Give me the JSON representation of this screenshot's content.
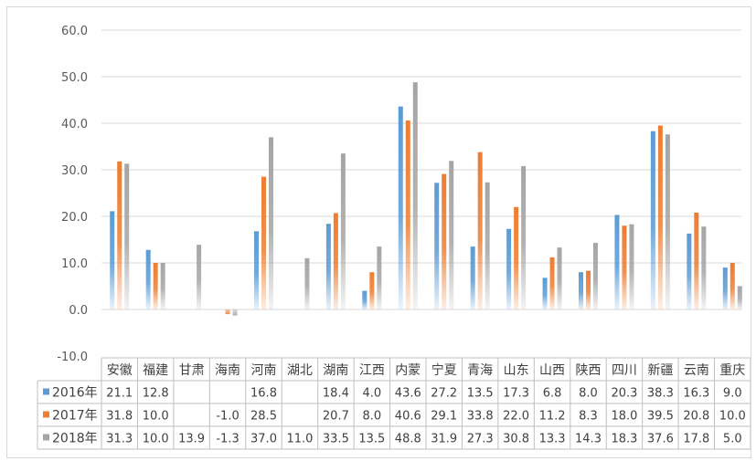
{
  "chart_data": {
    "type": "bar",
    "categories": [
      "安徽",
      "福建",
      "甘肃",
      "海南",
      "河南",
      "湖北",
      "湖南",
      "江西",
      "内蒙",
      "宁夏",
      "青海",
      "山东",
      "山西",
      "陕西",
      "四川",
      "新疆",
      "云南",
      "重庆"
    ],
    "series": [
      {
        "name": "2016年",
        "color": "#5B9BD5",
        "values": [
          21.1,
          12.8,
          null,
          null,
          16.8,
          null,
          18.4,
          4.0,
          43.6,
          27.2,
          13.5,
          17.3,
          6.8,
          8.0,
          20.3,
          38.3,
          16.3,
          9.0
        ],
        "labels": [
          "21.1",
          "12.8",
          "",
          "",
          "16.8",
          "",
          "18.4",
          "4.0",
          "43.6",
          "27.2",
          "13.5",
          "17.3",
          "6.8",
          "8.0",
          "20.3",
          "38.3",
          "16.3",
          "9.0"
        ]
      },
      {
        "name": "2017年",
        "color": "#ED7D31",
        "values": [
          31.8,
          10.0,
          null,
          -1.0,
          28.5,
          null,
          20.7,
          8.0,
          40.6,
          29.1,
          33.8,
          22.0,
          11.2,
          8.3,
          18.0,
          39.5,
          20.8,
          10.0
        ],
        "labels": [
          "31.8",
          "10.0",
          "",
          "-1.0",
          "28.5",
          "",
          "20.7",
          "8.0",
          "40.6",
          "29.1",
          "33.8",
          "22.0",
          "11.2",
          "8.3",
          "18.0",
          "39.5",
          "20.8",
          "10.0"
        ]
      },
      {
        "name": "2018年",
        "color": "#A5A5A5",
        "values": [
          31.3,
          10.0,
          13.9,
          -1.3,
          37.0,
          11.0,
          33.5,
          13.5,
          48.8,
          31.9,
          27.3,
          30.8,
          13.3,
          14.3,
          18.3,
          37.6,
          17.8,
          5.0
        ],
        "labels": [
          "31.3",
          "10.0",
          "13.9",
          "-1.3",
          "37.0",
          "11.0",
          "33.5",
          "13.5",
          "48.8",
          "31.9",
          "27.3",
          "30.8",
          "13.3",
          "14.3",
          "18.3",
          "37.6",
          "17.8",
          "5.0"
        ]
      }
    ],
    "ylim": [
      -10,
      60
    ],
    "yticks": [
      "-10.0",
      "0.0",
      "10.0",
      "20.0",
      "30.0",
      "40.0",
      "50.0",
      "60.0"
    ],
    "grid": true,
    "legend": "data-table",
    "title": "",
    "xlabel": "",
    "ylabel": ""
  }
}
